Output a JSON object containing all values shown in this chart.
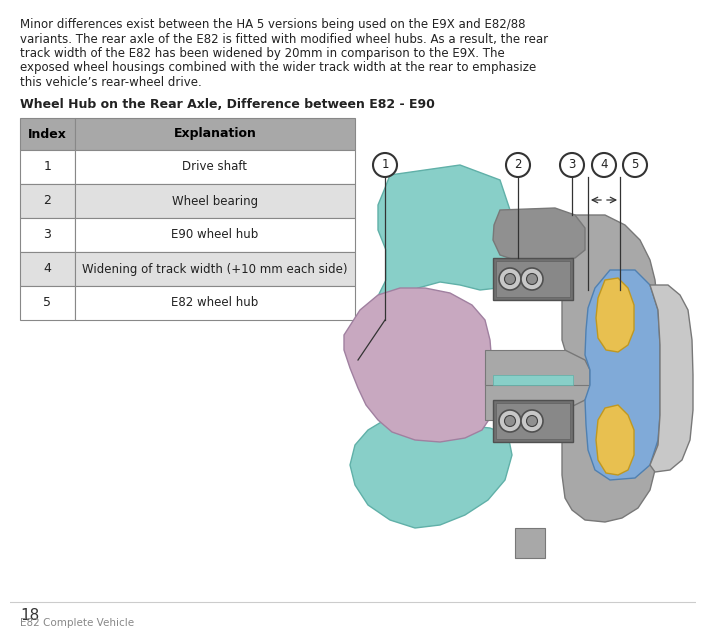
{
  "body_text_lines": [
    "Minor differences exist between the HA 5 versions being used on the E9X and E82/88",
    "variants. The rear axle of the E82 is fitted with modified wheel hubs. As a result, the rear",
    "track width of the E82 has been widened by 20mm in comparison to the E9X. The",
    "exposed wheel housings combined with the wider track width at the rear to emphasize",
    "this vehicle’s rear-wheel drive."
  ],
  "section_title": "Wheel Hub on the Rear Axle, Difference between E82 - E90",
  "table_headers": [
    "Index",
    "Explanation"
  ],
  "table_rows": [
    [
      "1",
      "Drive shaft"
    ],
    [
      "2",
      "Wheel bearing"
    ],
    [
      "3",
      "E90 wheel hub"
    ],
    [
      "4",
      "Widening of track width (+10 mm each side)"
    ],
    [
      "5",
      "E82 wheel hub"
    ]
  ],
  "footer_number": "18",
  "footer_text": "E82 Complete Vehicle",
  "bg_color": "#ffffff",
  "text_color": "#222222",
  "table_header_bg": "#a8a8a8",
  "table_row_bg_even": "#ffffff",
  "table_row_bg_odd": "#e0e0e0",
  "table_border": "#888888",
  "teal": "#88cfc8",
  "pink": "#c8a8c0",
  "gray_hub": "#a8a8a8",
  "gray_dark": "#787878",
  "blue": "#80aad8",
  "yellow": "#e8c050",
  "gray_light": "#c8c8c8",
  "gray_mid": "#909090",
  "white": "#ffffff",
  "black": "#222222"
}
